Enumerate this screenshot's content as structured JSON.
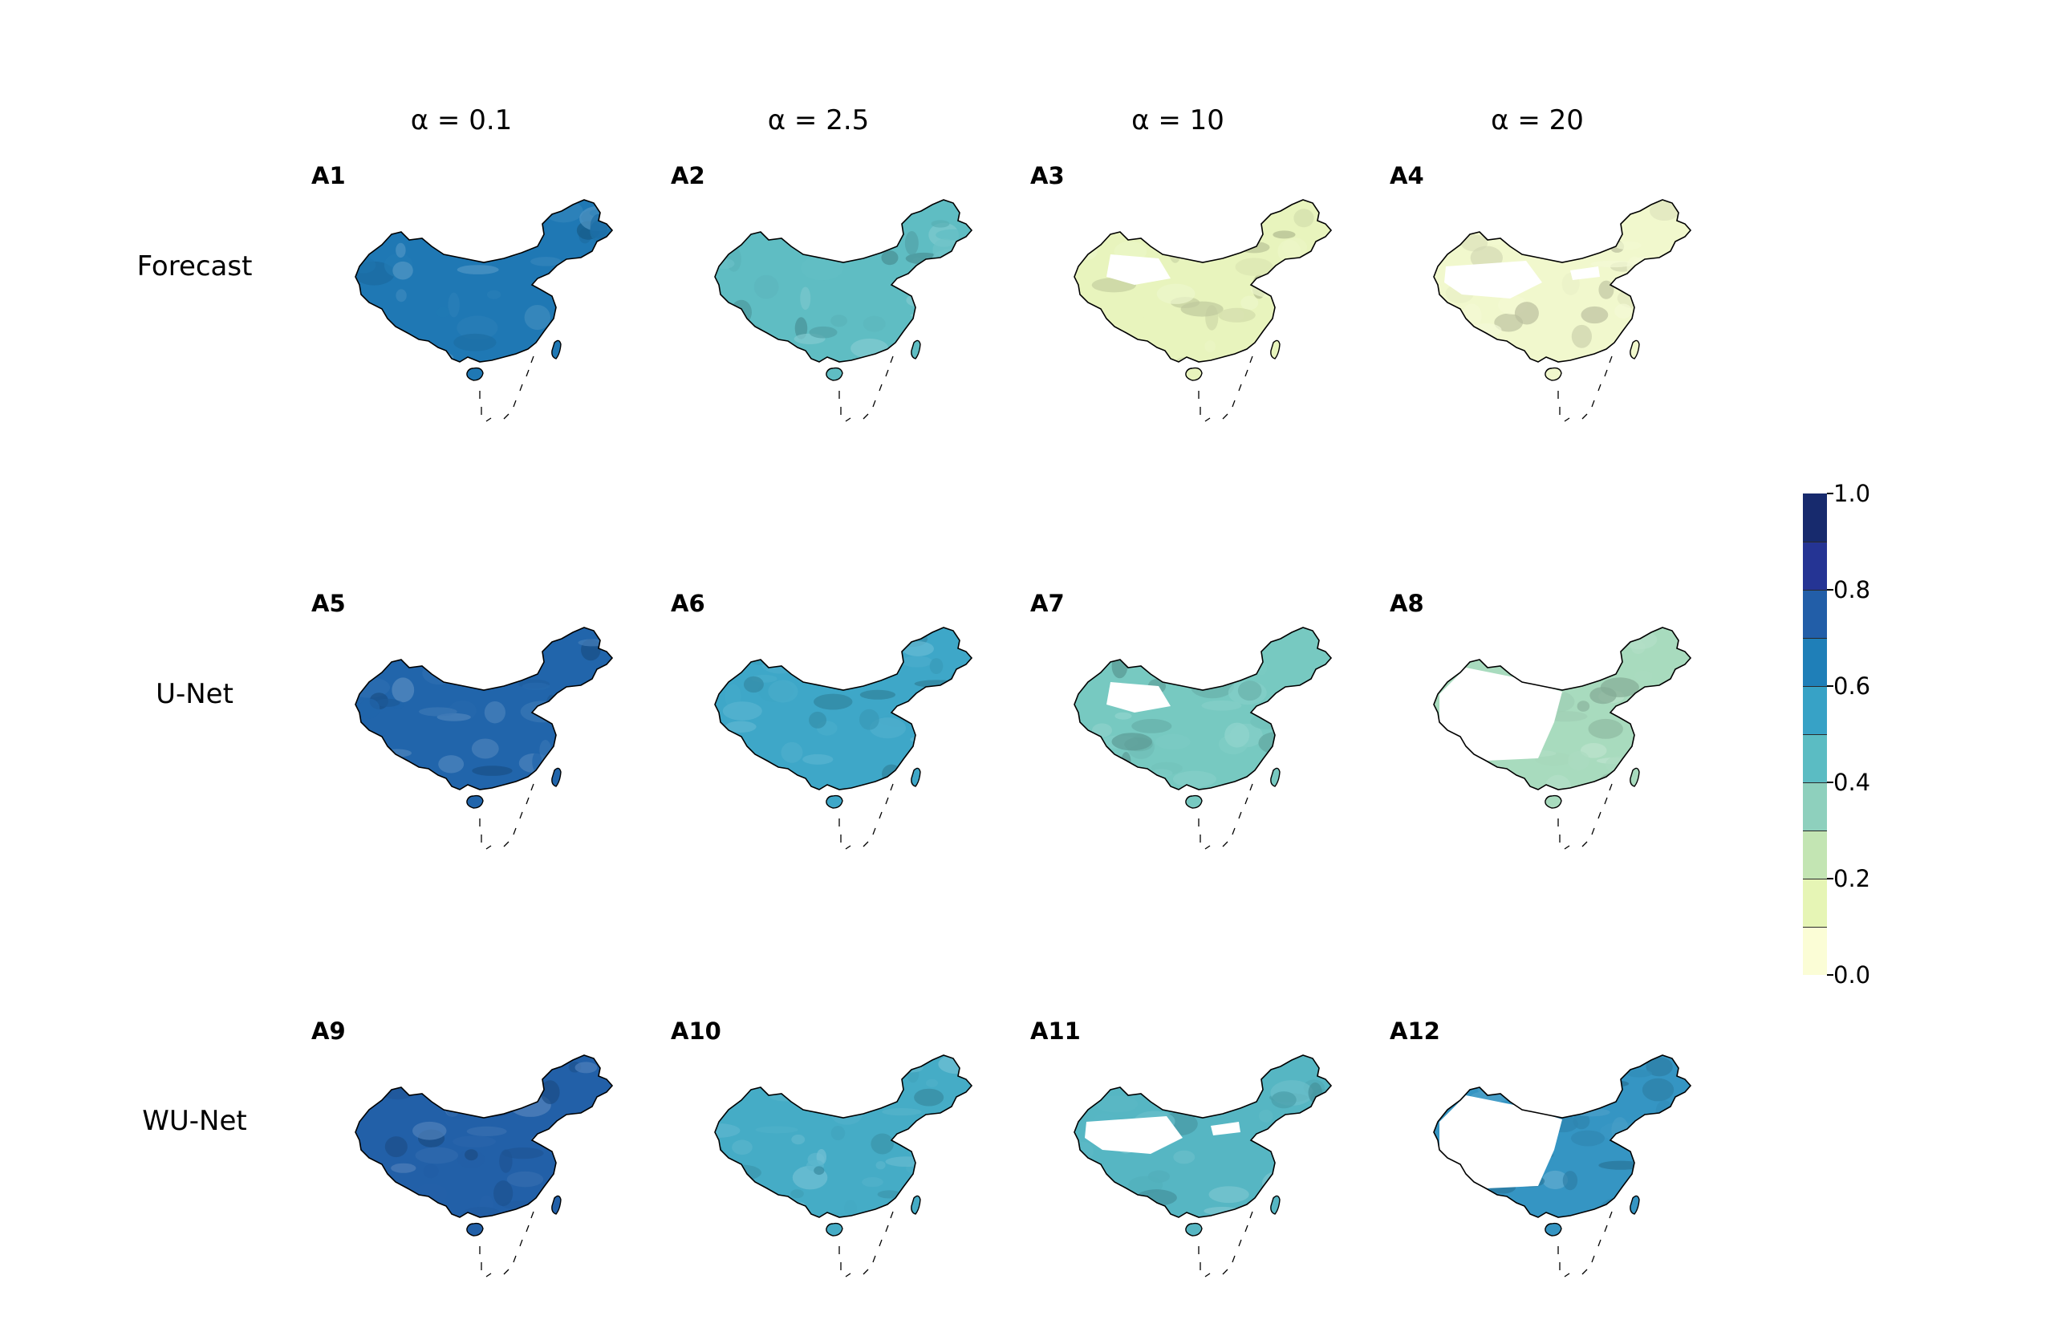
{
  "columns": [
    "α = 0.1",
    "α = 2.5",
    "α = 10",
    "α = 20"
  ],
  "rows": [
    "Forecast",
    "U-Net",
    "WU-Net"
  ],
  "panels": [
    {
      "id": "A1",
      "row": 0,
      "col": 0,
      "base": "#1f78b4",
      "base_value": 0.7,
      "blanks": 0
    },
    {
      "id": "A2",
      "row": 0,
      "col": 1,
      "base": "#5fbdc3",
      "base_value": 0.45,
      "blanks": 0
    },
    {
      "id": "A3",
      "row": 0,
      "col": 2,
      "base": "#e8f4bd",
      "base_value": 0.15,
      "blanks": 1
    },
    {
      "id": "A4",
      "row": 0,
      "col": 3,
      "base": "#f1f8cd",
      "base_value": 0.1,
      "blanks": 2
    },
    {
      "id": "A5",
      "row": 1,
      "col": 0,
      "base": "#2165ab",
      "base_value": 0.75,
      "blanks": 0
    },
    {
      "id": "A6",
      "row": 1,
      "col": 1,
      "base": "#3ea7c8",
      "base_value": 0.55,
      "blanks": 0
    },
    {
      "id": "A7",
      "row": 1,
      "col": 2,
      "base": "#77c9c1",
      "base_value": 0.45,
      "blanks": 1
    },
    {
      "id": "A8",
      "row": 1,
      "col": 3,
      "base": "#a8dbbe",
      "base_value": 0.35,
      "blanks": 3
    },
    {
      "id": "A9",
      "row": 2,
      "col": 0,
      "base": "#2260a8",
      "base_value": 0.75,
      "blanks": 0
    },
    {
      "id": "A10",
      "row": 2,
      "col": 1,
      "base": "#45acc6",
      "base_value": 0.5,
      "blanks": 0
    },
    {
      "id": "A11",
      "row": 2,
      "col": 2,
      "base": "#56b6c3",
      "base_value": 0.5,
      "blanks": 2
    },
    {
      "id": "A12",
      "row": 2,
      "col": 3,
      "base": "#3595c3",
      "base_value": 0.6,
      "blanks": 3
    }
  ],
  "colorbar": {
    "ticks": [
      "0.0",
      "0.2",
      "0.4",
      "0.6",
      "0.8",
      "1.0"
    ],
    "min": 0.0,
    "max": 1.0,
    "colors": [
      "#fbfdd6",
      "#e6f5b5",
      "#c3e5b3",
      "#8ed0bd",
      "#5bbcc3",
      "#37a2c6",
      "#1f7fb8",
      "#225ea8",
      "#253494",
      "#172a6d"
    ]
  }
}
